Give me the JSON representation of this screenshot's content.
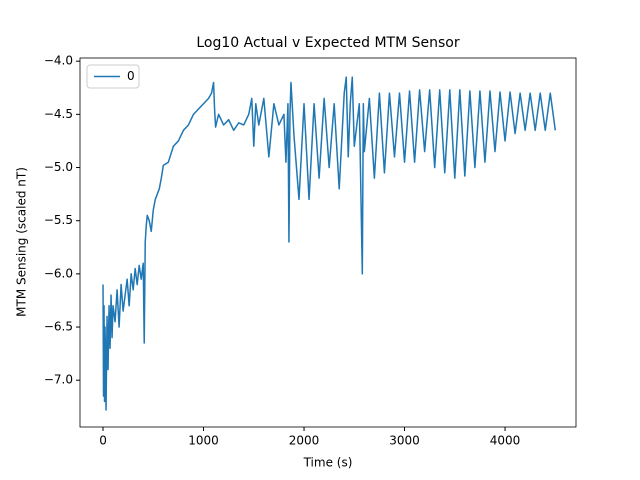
{
  "chart_data": {
    "type": "line",
    "title": "Log10 Actual v Expected MTM Sensor",
    "xlabel": "Time (s)",
    "ylabel": "MTM Sensing (scaled nT)",
    "legend": "upper left",
    "xlim": [
      -229,
      4706
    ],
    "ylim": [
      -7.44,
      -3.97
    ],
    "xticks": [
      0,
      1000,
      2000,
      3000,
      4000
    ],
    "yticks": [
      {
        "value": -4.0,
        "label": "−4.0"
      },
      {
        "value": -4.5,
        "label": "−4.5"
      },
      {
        "value": -5.0,
        "label": "−5.0"
      },
      {
        "value": -5.5,
        "label": "−5.5"
      },
      {
        "value": -6.0,
        "label": "−6.0"
      },
      {
        "value": -6.5,
        "label": "−6.5"
      },
      {
        "value": -7.0,
        "label": "−7.0"
      }
    ],
    "x": [
      0,
      5,
      10,
      15,
      20,
      25,
      30,
      40,
      50,
      60,
      70,
      80,
      90,
      100,
      120,
      140,
      160,
      180,
      200,
      220,
      240,
      260,
      280,
      300,
      320,
      340,
      360,
      380,
      400,
      410,
      420,
      430,
      440,
      460,
      480,
      500,
      520,
      540,
      560,
      580,
      600,
      650,
      700,
      750,
      800,
      850,
      900,
      950,
      1000,
      1050,
      1080,
      1100,
      1110,
      1120,
      1150,
      1200,
      1250,
      1300,
      1350,
      1400,
      1450,
      1480,
      1500,
      1520,
      1550,
      1600,
      1650,
      1700,
      1750,
      1800,
      1820,
      1840,
      1850,
      1860,
      1870,
      1900,
      1950,
      2000,
      2050,
      2100,
      2150,
      2200,
      2250,
      2300,
      2350,
      2400,
      2420,
      2440,
      2460,
      2480,
      2500,
      2550,
      2580,
      2590,
      2600,
      2650,
      2700,
      2750,
      2800,
      2850,
      2900,
      2950,
      3000,
      3050,
      3100,
      3150,
      3200,
      3250,
      3300,
      3350,
      3400,
      3450,
      3500,
      3550,
      3600,
      3650,
      3700,
      3750,
      3800,
      3850,
      3900,
      3950,
      4000,
      4050,
      4100,
      4150,
      4200,
      4250,
      4300,
      4350,
      4400,
      4450,
      4500
    ],
    "series": [
      {
        "name": "0",
        "color": "#1f77b4",
        "values": [
          -6.1,
          -7.15,
          -6.3,
          -7.2,
          -6.5,
          -6.8,
          -7.28,
          -6.4,
          -6.9,
          -6.3,
          -6.7,
          -6.2,
          -6.6,
          -6.3,
          -6.45,
          -6.15,
          -6.5,
          -6.1,
          -6.35,
          -6.2,
          -6.05,
          -6.3,
          -6.0,
          -6.15,
          -5.95,
          -6.1,
          -5.92,
          -6.05,
          -5.9,
          -6.65,
          -5.7,
          -5.55,
          -5.45,
          -5.5,
          -5.6,
          -5.4,
          -5.3,
          -5.25,
          -5.2,
          -5.1,
          -4.98,
          -4.95,
          -4.8,
          -4.75,
          -4.65,
          -4.6,
          -4.5,
          -4.45,
          -4.4,
          -4.35,
          -4.3,
          -4.2,
          -4.45,
          -4.62,
          -4.5,
          -4.6,
          -4.55,
          -4.65,
          -4.58,
          -4.6,
          -4.5,
          -4.35,
          -4.8,
          -4.4,
          -4.6,
          -4.35,
          -4.9,
          -4.4,
          -4.6,
          -4.5,
          -4.95,
          -4.4,
          -5.7,
          -4.5,
          -4.2,
          -4.7,
          -5.3,
          -4.4,
          -5.3,
          -4.4,
          -5.1,
          -4.35,
          -5.0,
          -4.4,
          -5.2,
          -4.3,
          -4.15,
          -4.9,
          -4.4,
          -4.15,
          -4.8,
          -4.4,
          -6.0,
          -4.4,
          -4.85,
          -4.35,
          -5.1,
          -4.3,
          -5.05,
          -4.3,
          -4.9,
          -4.3,
          -4.95,
          -4.28,
          -4.95,
          -4.27,
          -4.85,
          -4.27,
          -5.0,
          -4.27,
          -5.05,
          -4.27,
          -5.1,
          -4.27,
          -5.08,
          -4.28,
          -5.0,
          -4.28,
          -4.95,
          -4.28,
          -4.85,
          -4.29,
          -4.75,
          -4.29,
          -4.68,
          -4.3,
          -4.65,
          -4.3,
          -4.65,
          -4.3,
          -4.65,
          -4.3,
          -4.65
        ]
      }
    ]
  }
}
